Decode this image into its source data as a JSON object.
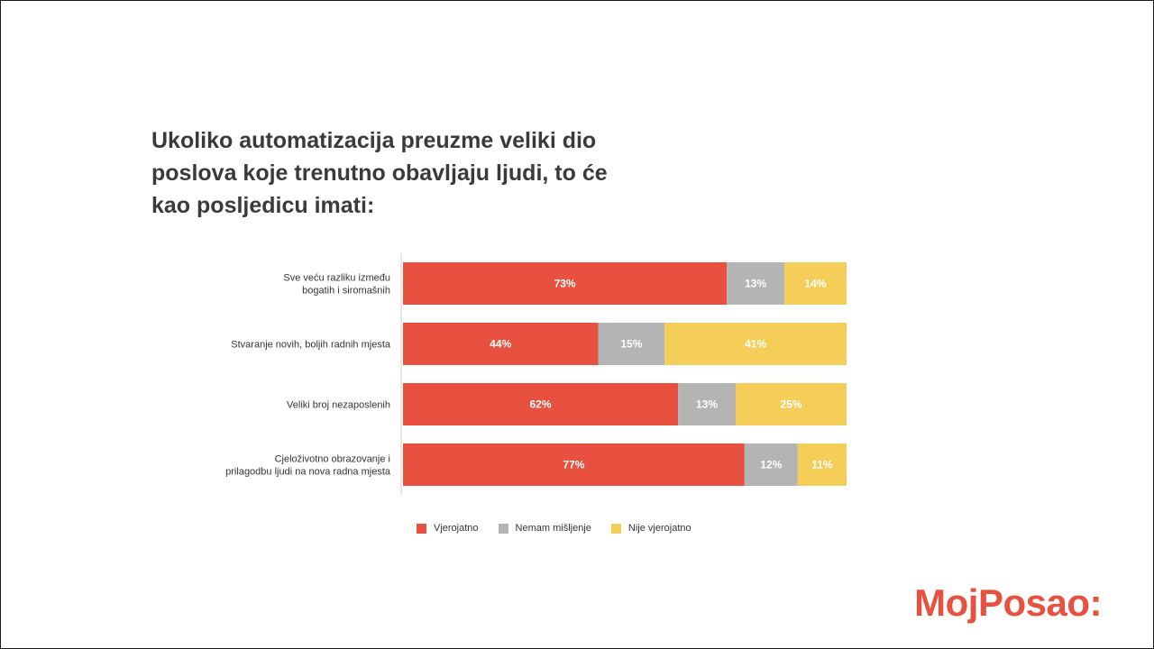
{
  "chart_data": {
    "type": "bar",
    "orientation": "horizontal",
    "stacked": true,
    "title_lines": [
      "Ukoliko automatizacija preuzme veliki dio",
      "poslova koje trenutno obavljaju ljudi, to će",
      "kao posljedicu imati:"
    ],
    "categories": [
      [
        "Sve veću razliku između",
        "bogatih i siromašnih"
      ],
      [
        "Stvaranje novih, boljih radnih mjesta"
      ],
      [
        "Veliki broj nezaposlenih"
      ],
      [
        "Cjeloživotno obrazovanje i",
        "prilagodbu ljudi na nova radna mjesta"
      ]
    ],
    "series": [
      {
        "name": "Vjerojatno",
        "color": "#e8513f",
        "values": [
          73,
          44,
          62,
          77
        ],
        "labels": [
          "73%",
          "44%",
          "62%",
          "77%"
        ]
      },
      {
        "name": "Nemam mišljenje",
        "color": "#b4b4b4",
        "values": [
          13,
          15,
          13,
          12
        ],
        "labels": [
          "13%",
          "15%",
          "13%",
          "12%"
        ]
      },
      {
        "name": "Nije vjerojatno",
        "color": "#f5ce5a",
        "values": [
          14,
          41,
          25,
          11
        ],
        "labels": [
          "14%",
          "41%",
          "25%",
          "11%"
        ]
      }
    ],
    "xlim": [
      0,
      100
    ],
    "legend_position": "bottom"
  },
  "brand": {
    "logo_text": "MojPosao:",
    "color": "#e8513f"
  }
}
